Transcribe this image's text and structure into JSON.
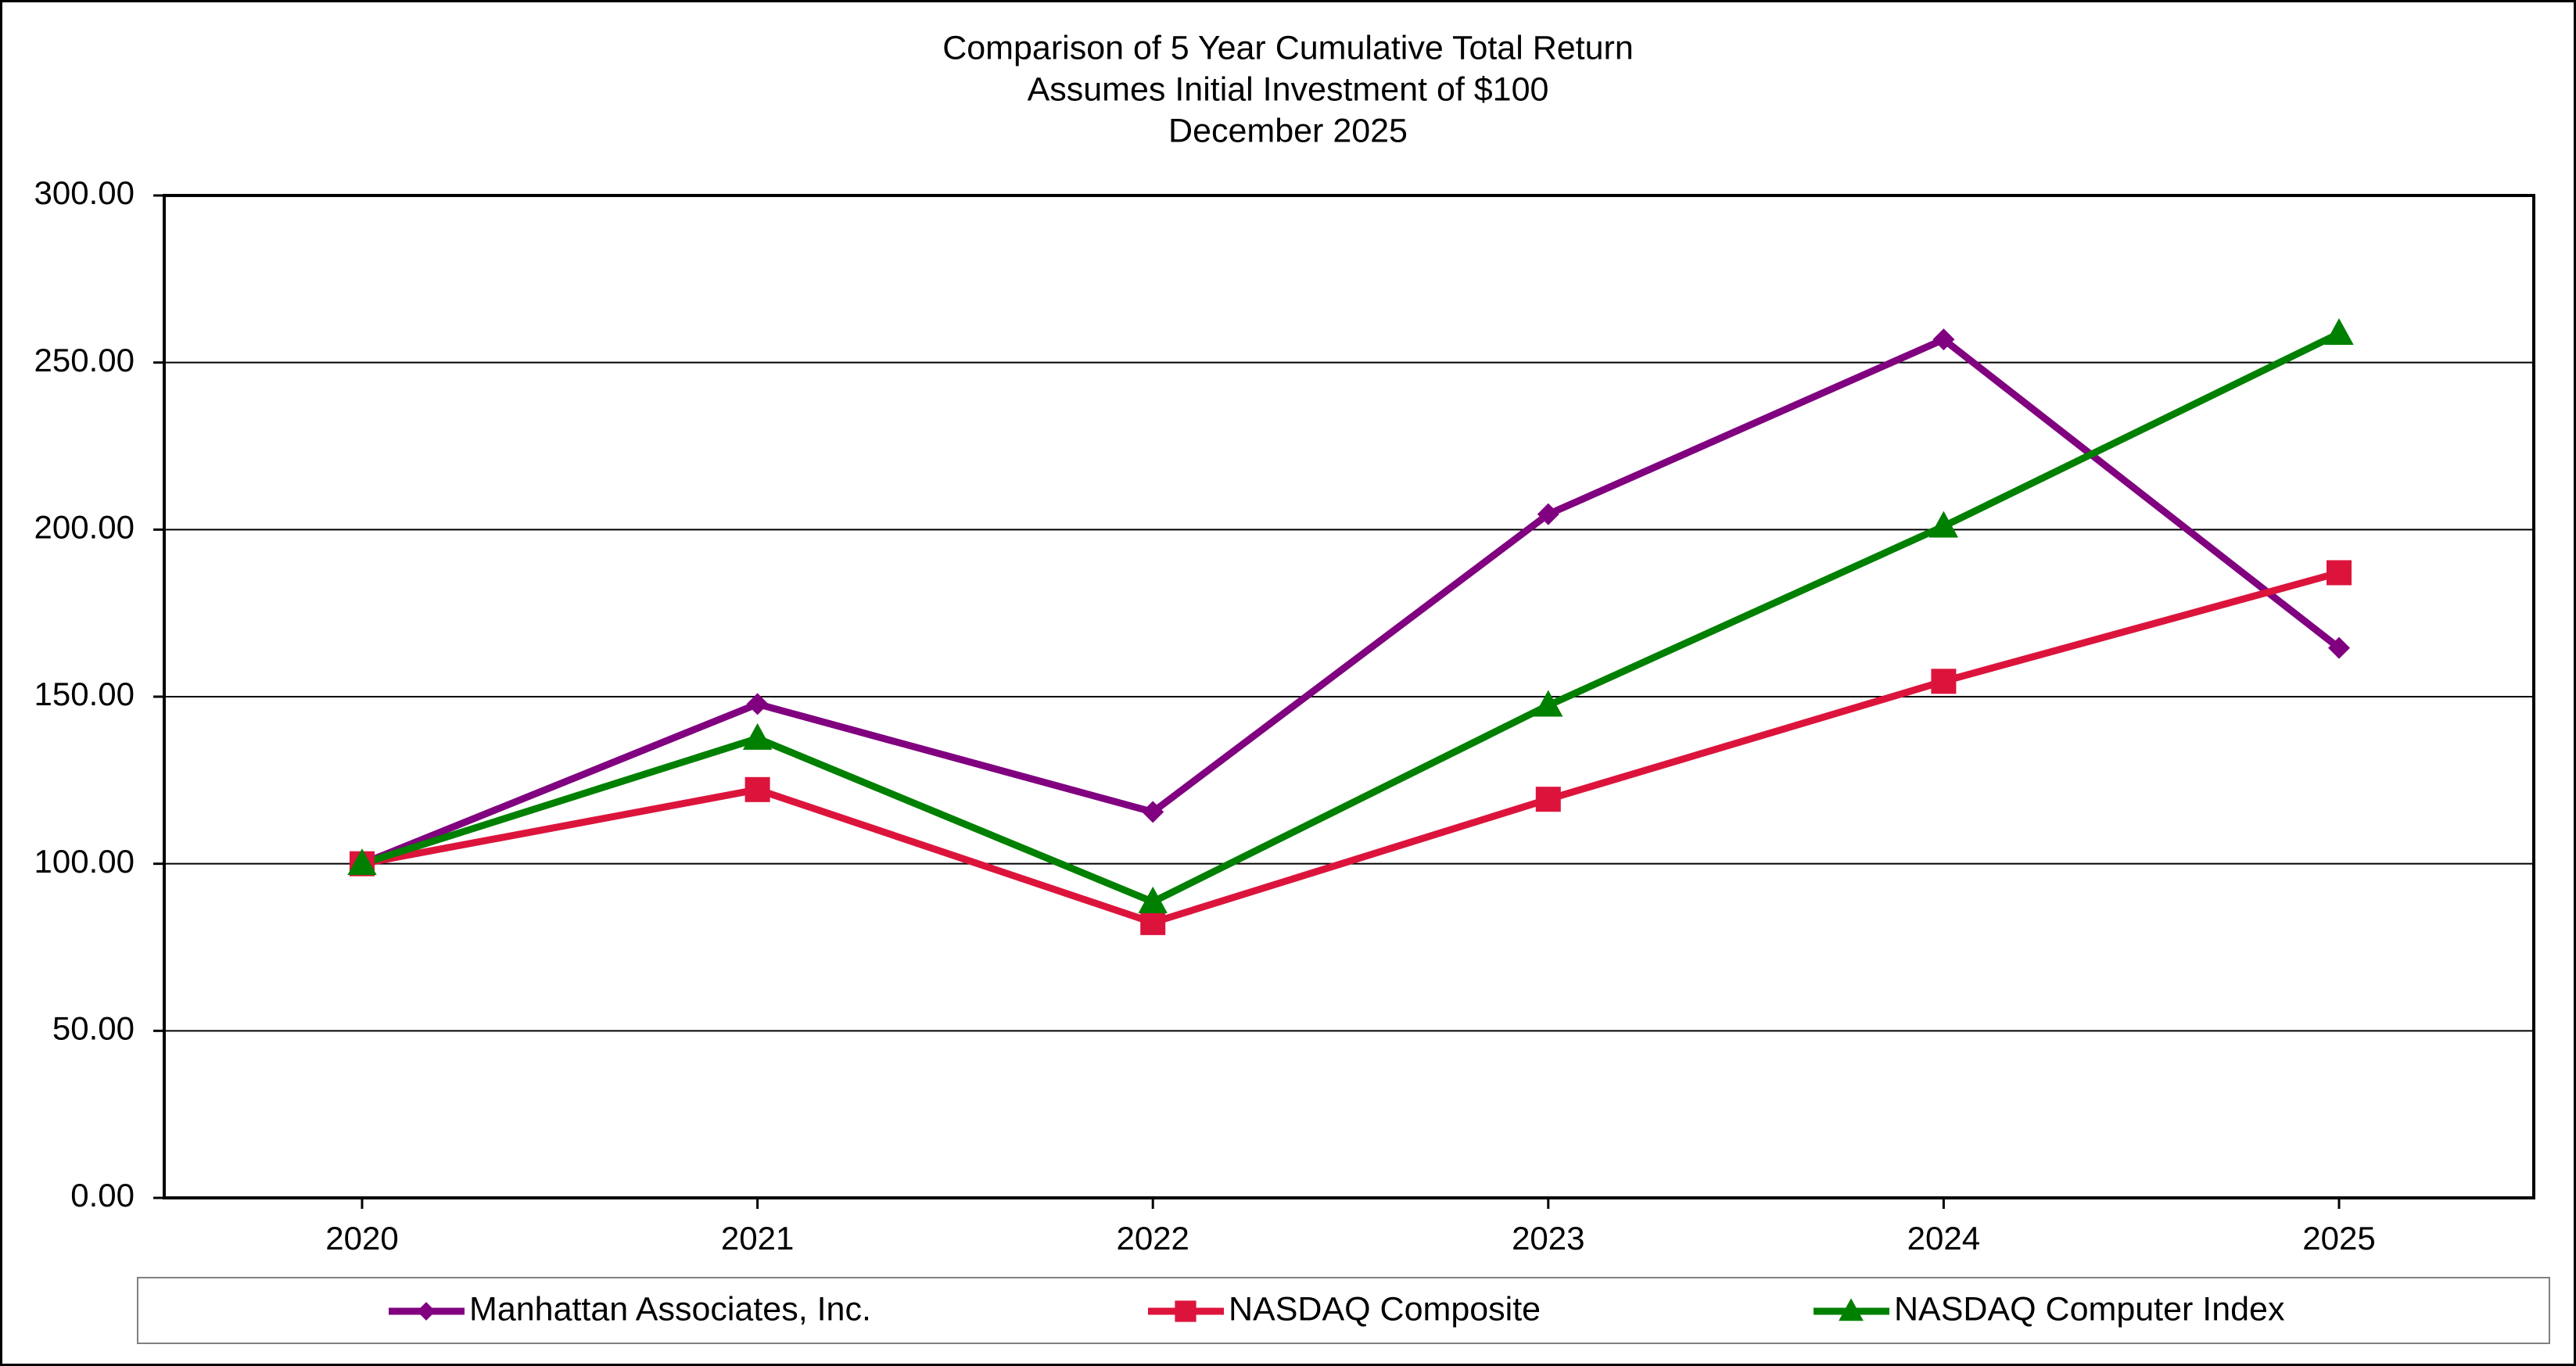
{
  "chart_data": {
    "type": "line",
    "title": [
      "Comparison of 5 Year Cumulative Total Return",
      "Assumes Initial Investment of $100",
      "December 2025"
    ],
    "categories": [
      "2020",
      "2021",
      "2022",
      "2023",
      "2024",
      "2025"
    ],
    "ylim": [
      0,
      300
    ],
    "yticks": [
      "0.00",
      "50.00",
      "100.00",
      "150.00",
      "200.00",
      "250.00",
      "300.00"
    ],
    "grid": true,
    "legend_position": "bottom",
    "series": [
      {
        "name": "Manhattan Associates, Inc.",
        "color": "#800080",
        "marker": "diamond",
        "values": [
          100.0,
          147.8,
          115.5,
          204.6,
          256.9,
          164.6
        ]
      },
      {
        "name": "NASDAQ Composite",
        "color": "#DC143C",
        "marker": "square",
        "values": [
          100.0,
          122.2,
          82.4,
          119.3,
          154.6,
          187.1
        ]
      },
      {
        "name": "NASDAQ Computer Index",
        "color": "#008000",
        "marker": "triangle",
        "values": [
          100.0,
          137.5,
          88.6,
          147.4,
          201.0,
          258.7
        ]
      }
    ]
  }
}
